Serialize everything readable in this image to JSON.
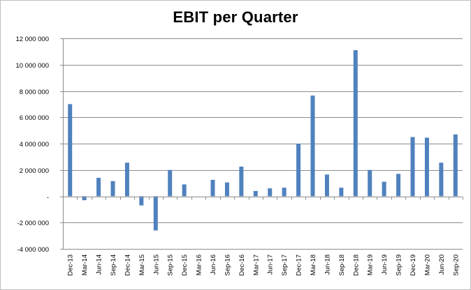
{
  "chart_data": {
    "type": "bar",
    "title": "EBIT per Quarter",
    "xlabel": "",
    "ylabel": "",
    "ylim": [
      -4000000,
      12000000
    ],
    "yticks": [
      12000000,
      10000000,
      8000000,
      6000000,
      4000000,
      2000000,
      0,
      -2000000,
      -4000000
    ],
    "ytick_labels": [
      "12 000 000",
      "10 000 000",
      "8 000 000",
      "6 000 000",
      "4 000 000",
      "2 000 000",
      "-",
      "-2 000 000",
      "-4 000 000"
    ],
    "grid": true,
    "legend": "none",
    "bar_color": "#4f81bd",
    "categories": [
      "Dec-13",
      "Mar-14",
      "Jun-14",
      "Sep-14",
      "Dec-14",
      "Mar-15",
      "Jun-15",
      "Sep-15",
      "Dec-15",
      "Mar-16",
      "Jun-16",
      "Sep-16",
      "Dec-16",
      "Mar-17",
      "Jun-17",
      "Sep-17",
      "Dec-17",
      "Mar-18",
      "Jun-18",
      "Sep-18",
      "Dec-18",
      "Mar-19",
      "Jun-19",
      "Sep-19",
      "Dec-19",
      "Mar-20",
      "Jun-20",
      "Sep-20"
    ],
    "values": [
      7000000,
      -300000,
      1400000,
      1150000,
      2550000,
      -700000,
      -2600000,
      2000000,
      900000,
      0,
      1250000,
      1050000,
      2250000,
      400000,
      600000,
      650000,
      4000000,
      7650000,
      1650000,
      650000,
      11100000,
      2000000,
      1100000,
      1700000,
      4500000,
      4450000,
      2550000,
      4700000
    ]
  }
}
